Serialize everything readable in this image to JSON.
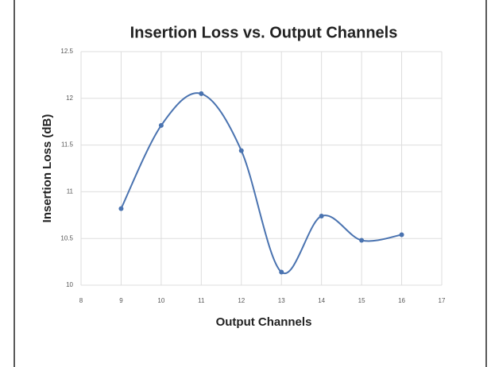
{
  "chart_data": {
    "type": "line",
    "title": "Insertion Loss vs. Output Channels",
    "x_label": "Output Channels",
    "y_label": "Insertion Loss  (dB)",
    "x": [
      9,
      10,
      11,
      12,
      13,
      14,
      15,
      16
    ],
    "series": [
      {
        "name": "Insertion Loss",
        "color": "#4a73b0",
        "values": [
          10.82,
          11.71,
          12.05,
          11.44,
          10.14,
          10.74,
          10.48,
          10.54
        ]
      }
    ],
    "xlim": [
      8,
      17
    ],
    "xticks": [
      8,
      9,
      10,
      11,
      12,
      13,
      14,
      15,
      16,
      17
    ],
    "ylim": [
      10,
      12.5
    ],
    "yticks": [
      10,
      10.5,
      11,
      11.5,
      12,
      12.5
    ],
    "grid": true,
    "smooth": true
  }
}
